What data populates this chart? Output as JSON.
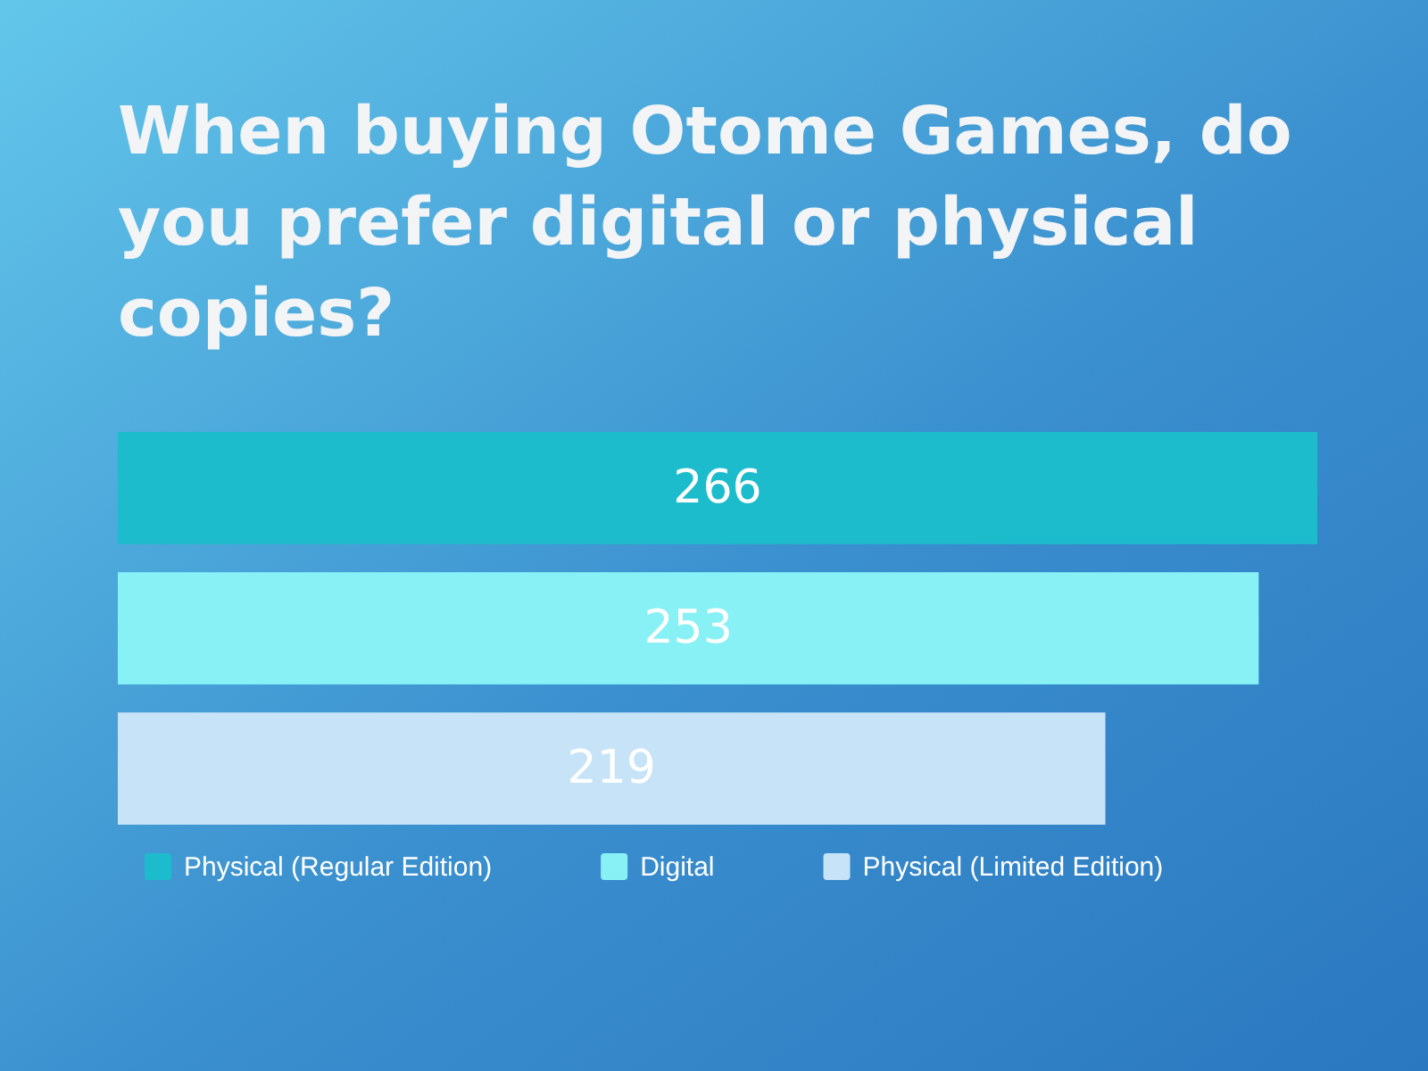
{
  "chart_data": {
    "type": "bar",
    "orientation": "horizontal",
    "stacked": true,
    "title": "When buying Otome Games, do you prefer digital or physical copies?",
    "categories": [
      null,
      null,
      null
    ],
    "series": [
      {
        "name": "Physical (Regular Edition)",
        "color": "#1dbccc",
        "values": [
          266,
          null,
          null
        ]
      },
      {
        "name": "Digital",
        "color": "#88f1f6",
        "values": [
          null,
          253,
          null
        ]
      },
      {
        "name": "Physical (Limited Edition)",
        "color": "#c6e3f8",
        "values": [
          null,
          null,
          219
        ]
      }
    ],
    "data_labels": true,
    "legend": "bottom",
    "tick_labels": false
  }
}
